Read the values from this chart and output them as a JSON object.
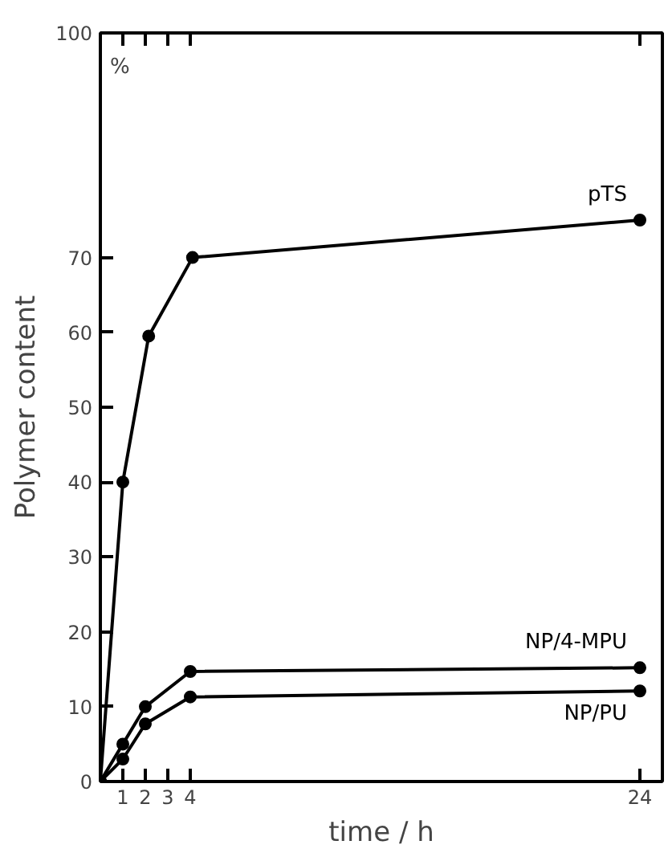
{
  "chart_data": {
    "type": "line",
    "xlabel": "time / h",
    "ylabel": "Polymer content",
    "annotations": [
      "%"
    ],
    "xlim": [
      0,
      25
    ],
    "ylim": [
      0,
      100
    ],
    "xticks": [
      1,
      2,
      3,
      4,
      24
    ],
    "yticks": [
      0,
      10,
      20,
      30,
      40,
      50,
      60,
      70,
      100
    ],
    "marker": "circle",
    "grid": false,
    "series": [
      {
        "name": "pTS",
        "color": "#000000",
        "x": [
          0,
          1,
          2.15,
          4.1,
          24
        ],
        "values": [
          0,
          40,
          59.5,
          70,
          75
        ]
      },
      {
        "name": "NP/4-MPU",
        "color": "#000000",
        "x": [
          0,
          1,
          2,
          4,
          24
        ],
        "values": [
          0,
          5,
          10,
          14.7,
          15.2
        ]
      },
      {
        "name": "NP/PU",
        "color": "#000000",
        "x": [
          0,
          1,
          2,
          4,
          24
        ],
        "values": [
          0,
          3,
          7.7,
          11.3,
          12.1
        ]
      }
    ]
  }
}
